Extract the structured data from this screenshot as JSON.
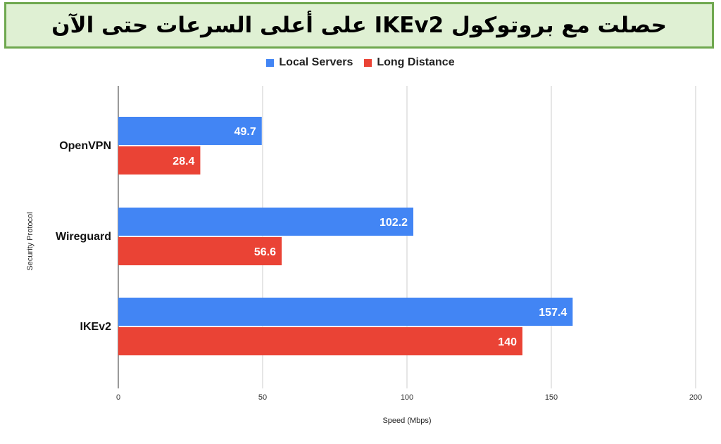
{
  "title": "حصلت مع بروتوكول IKEv2 على أعلى السرعات حتى الآن",
  "legend": [
    {
      "name": "Local Servers",
      "color": "#4285f4"
    },
    {
      "name": "Long Distance",
      "color": "#ea4335"
    }
  ],
  "chart_data": {
    "type": "bar",
    "orientation": "horizontal",
    "categories": [
      "OpenVPN",
      "Wireguard",
      "IKEv2"
    ],
    "series": [
      {
        "name": "Local Servers",
        "values": [
          49.7,
          102.2,
          157.4
        ],
        "color": "#4285f4"
      },
      {
        "name": "Long Distance",
        "values": [
          28.4,
          56.6,
          140
        ],
        "color": "#ea4335"
      }
    ],
    "data_labels": [
      [
        "49.7",
        "102.2",
        "157.4"
      ],
      [
        "28.4",
        "56.6",
        "140"
      ]
    ],
    "xlabel": "Speed (Mbps)",
    "ylabel": "Security Protocol",
    "xlim": [
      0,
      200
    ],
    "xticks": [
      0,
      50,
      100,
      150,
      200
    ],
    "grid": true,
    "legend_position": "top"
  }
}
